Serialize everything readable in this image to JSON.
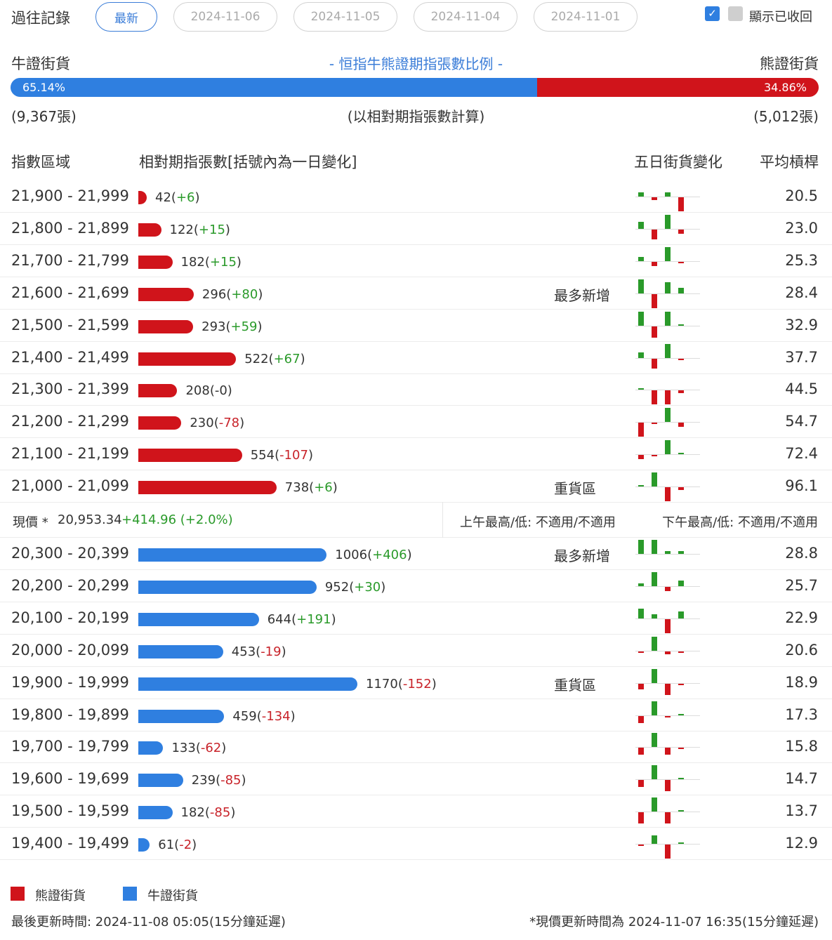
{
  "history": {
    "title": "過往記錄",
    "tabs": [
      "最新",
      "2024-11-06",
      "2024-11-05",
      "2024-11-04",
      "2024-11-01"
    ],
    "active_tab": "最新",
    "show_collapsed_label": "顯示已收回",
    "show_collapsed_checked": true
  },
  "ratio": {
    "bull_label": "牛證街貨",
    "title": "- 恒指牛熊證期指張數比例 -",
    "bear_label": "熊證街貨",
    "bull_pct": "65.14%",
    "bear_pct": "34.86%",
    "bull_fraction": 0.6514,
    "bull_count": "(9,367張)",
    "note": "(以相對期指張數計算)",
    "bear_count": "(5,012張)"
  },
  "table": {
    "headers": {
      "range": "指數區域",
      "contracts": "相對期指張數[括號內為一日變化]",
      "five_day": "五日街貨變化",
      "leverage": "平均槓桿"
    },
    "bear_rows": [
      {
        "range": "21,900 - 21,999",
        "value": "42",
        "change": "+6",
        "trend": "pos",
        "note": "",
        "leverage": "20.5",
        "spark": [
          0.3,
          -0.2,
          0.3,
          -1.0
        ]
      },
      {
        "range": "21,800 - 21,899",
        "value": "122",
        "change": "+15",
        "trend": "pos",
        "note": "",
        "leverage": "23.0",
        "spark": [
          0.5,
          -0.7,
          1.0,
          -0.3
        ]
      },
      {
        "range": "21,700 - 21,799",
        "value": "182",
        "change": "+15",
        "trend": "pos",
        "note": "",
        "leverage": "25.3",
        "spark": [
          0.3,
          -0.3,
          1.0,
          -0.1
        ]
      },
      {
        "range": "21,600 - 21,699",
        "value": "296",
        "change": "+80",
        "trend": "pos",
        "note": "最多新增",
        "leverage": "28.4",
        "spark": [
          1.0,
          -1.0,
          0.8,
          0.4
        ]
      },
      {
        "range": "21,500 - 21,599",
        "value": "293",
        "change": "+59",
        "trend": "pos",
        "note": "",
        "leverage": "32.9",
        "spark": [
          1.0,
          -0.8,
          1.0,
          0.05
        ]
      },
      {
        "range": "21,400 - 21,499",
        "value": "522",
        "change": "+67",
        "trend": "pos",
        "note": "",
        "leverage": "37.7",
        "spark": [
          0.4,
          -0.7,
          1.0,
          -0.1
        ]
      },
      {
        "range": "21,300 - 21,399",
        "value": "208",
        "change": "-0",
        "trend": "none",
        "note": "",
        "leverage": "44.5",
        "spark": [
          0.0,
          -1.0,
          -1.0,
          -0.2
        ]
      },
      {
        "range": "21,200 - 21,299",
        "value": "230",
        "change": "-78",
        "trend": "neg",
        "note": "",
        "leverage": "54.7",
        "spark": [
          -1.0,
          -0.1,
          1.0,
          -0.3
        ]
      },
      {
        "range": "21,100 - 21,199",
        "value": "554",
        "change": "-107",
        "trend": "neg",
        "note": "",
        "leverage": "72.4",
        "spark": [
          -0.3,
          -0.1,
          1.0,
          0.0
        ]
      },
      {
        "range": "21,000 - 21,099",
        "value": "738",
        "change": "+6",
        "trend": "pos",
        "note": "重貨區",
        "leverage": "96.1",
        "spark": [
          0.05,
          1.0,
          -1.0,
          -0.2
        ]
      }
    ],
    "price": {
      "label": "現價 *",
      "value": "20,953.34",
      "change": "+414.96 (+2.0%)",
      "am_range": "上午最高/低: 不適用/不適用",
      "pm_range": "下午最高/低: 不適用/不適用"
    },
    "bull_rows": [
      {
        "range": "20,300 - 20,399",
        "value": "1006",
        "change": "+406",
        "trend": "pos",
        "note": "最多新增",
        "leverage": "28.8",
        "spark": [
          1.0,
          1.0,
          0.2,
          0.2
        ]
      },
      {
        "range": "20,200 - 20,299",
        "value": "952",
        "change": "+30",
        "trend": "pos",
        "note": "",
        "leverage": "25.7",
        "spark": [
          0.2,
          1.0,
          -0.3,
          0.4
        ]
      },
      {
        "range": "20,100 - 20,199",
        "value": "644",
        "change": "+191",
        "trend": "pos",
        "note": "",
        "leverage": "22.9",
        "spark": [
          0.7,
          0.3,
          -1.0,
          0.5
        ]
      },
      {
        "range": "20,000 - 20,099",
        "value": "453",
        "change": "-19",
        "trend": "neg",
        "note": "",
        "leverage": "20.6",
        "spark": [
          -0.1,
          1.0,
          -0.2,
          -0.1
        ]
      },
      {
        "range": "19,900 - 19,999",
        "value": "1170",
        "change": "-152",
        "trend": "neg",
        "note": "重貨區",
        "leverage": "18.9",
        "spark": [
          -0.4,
          1.0,
          -0.8,
          -0.1
        ]
      },
      {
        "range": "19,800 - 19,899",
        "value": "459",
        "change": "-134",
        "trend": "neg",
        "note": "",
        "leverage": "17.3",
        "spark": [
          -0.5,
          1.0,
          -0.1,
          0.1
        ]
      },
      {
        "range": "19,700 - 19,799",
        "value": "133",
        "change": "-62",
        "trend": "neg",
        "note": "",
        "leverage": "15.8",
        "spark": [
          -0.5,
          1.0,
          -0.5,
          -0.1
        ]
      },
      {
        "range": "19,600 - 19,699",
        "value": "239",
        "change": "-85",
        "trend": "neg",
        "note": "",
        "leverage": "14.7",
        "spark": [
          -0.5,
          1.0,
          -0.8,
          0.05
        ]
      },
      {
        "range": "19,500 - 19,599",
        "value": "182",
        "change": "-85",
        "trend": "neg",
        "note": "",
        "leverage": "13.7",
        "spark": [
          -0.8,
          1.0,
          -0.8,
          0.1
        ]
      },
      {
        "range": "19,400 - 19,499",
        "value": "61",
        "change": "-2",
        "trend": "neg",
        "note": "",
        "leverage": "12.9",
        "spark": [
          -0.1,
          0.6,
          -1.0,
          0.0
        ]
      }
    ]
  },
  "legend": {
    "bear": "熊證街貨",
    "bull": "牛證街貨"
  },
  "footer": {
    "last_update": "最後更新時間: 2024-11-08 05:05(15分鐘延遲)",
    "price_update": "*現價更新時間為 2024-11-07 16:35(15分鐘延遲)"
  },
  "colors": {
    "bear": "#d0141b",
    "bull": "#2f7fe0",
    "up": "#2a9a2a",
    "down": "#c8232a"
  }
}
